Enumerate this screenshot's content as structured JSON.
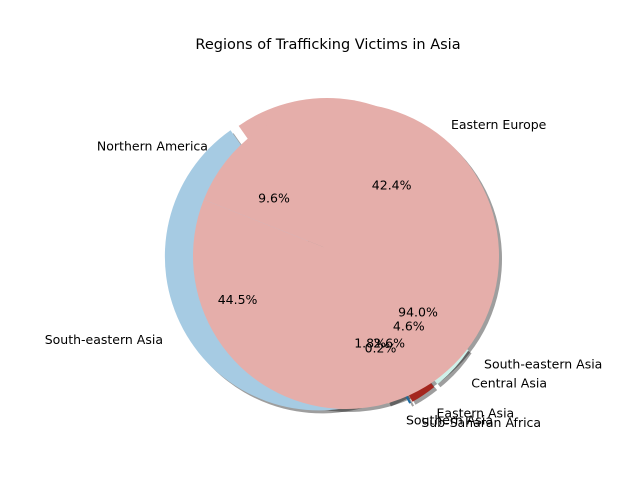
{
  "chart_data": {
    "type": "pie",
    "title": "Regions of Trafficking Victims in Asia",
    "shadow": true,
    "pies": [
      {
        "name": "back",
        "start_angle": 125,
        "slices": [
          {
            "label": "South-eastern Asia",
            "pct_label": "44.5%",
            "value": 44.5,
            "color": "#a6cbe3",
            "explode": 0.06
          },
          {
            "label": "Southern Asia",
            "pct_label": "1.8%",
            "value": 1.8,
            "color": "#f7cba6",
            "explode": 0.06
          },
          {
            "label": "Sub-Saharan Africa",
            "pct_label": "0.2%",
            "value": 0.2,
            "color": "#1c6aa1",
            "explode": 0.12
          },
          {
            "label": "Eastern Asia",
            "pct_label": "2.6%",
            "value": 2.6,
            "color": "#a4271f",
            "explode": 0.12
          },
          {
            "label": "Central Asia",
            "pct_label": "4.6%",
            "value": 4.6,
            "color": "#cff0e9",
            "explode": 0.12
          },
          {
            "label": "Eastern Europe",
            "pct_label": "42.4%",
            "value": 42.4,
            "color": "#e5aeaa",
            "explode": 0.0
          }
        ]
      },
      {
        "name": "front",
        "start_angle": 125,
        "slices": [
          {
            "label": "Northern America",
            "pct_label": "9.6%",
            "value": 9.6,
            "color": "#e5aeaa",
            "explode": 0.0
          },
          {
            "label": "South-eastern Asia",
            "pct_label": "94.0%",
            "value": 94.0,
            "color": "#e5aeaa",
            "explode": 0.0
          }
        ]
      }
    ]
  }
}
